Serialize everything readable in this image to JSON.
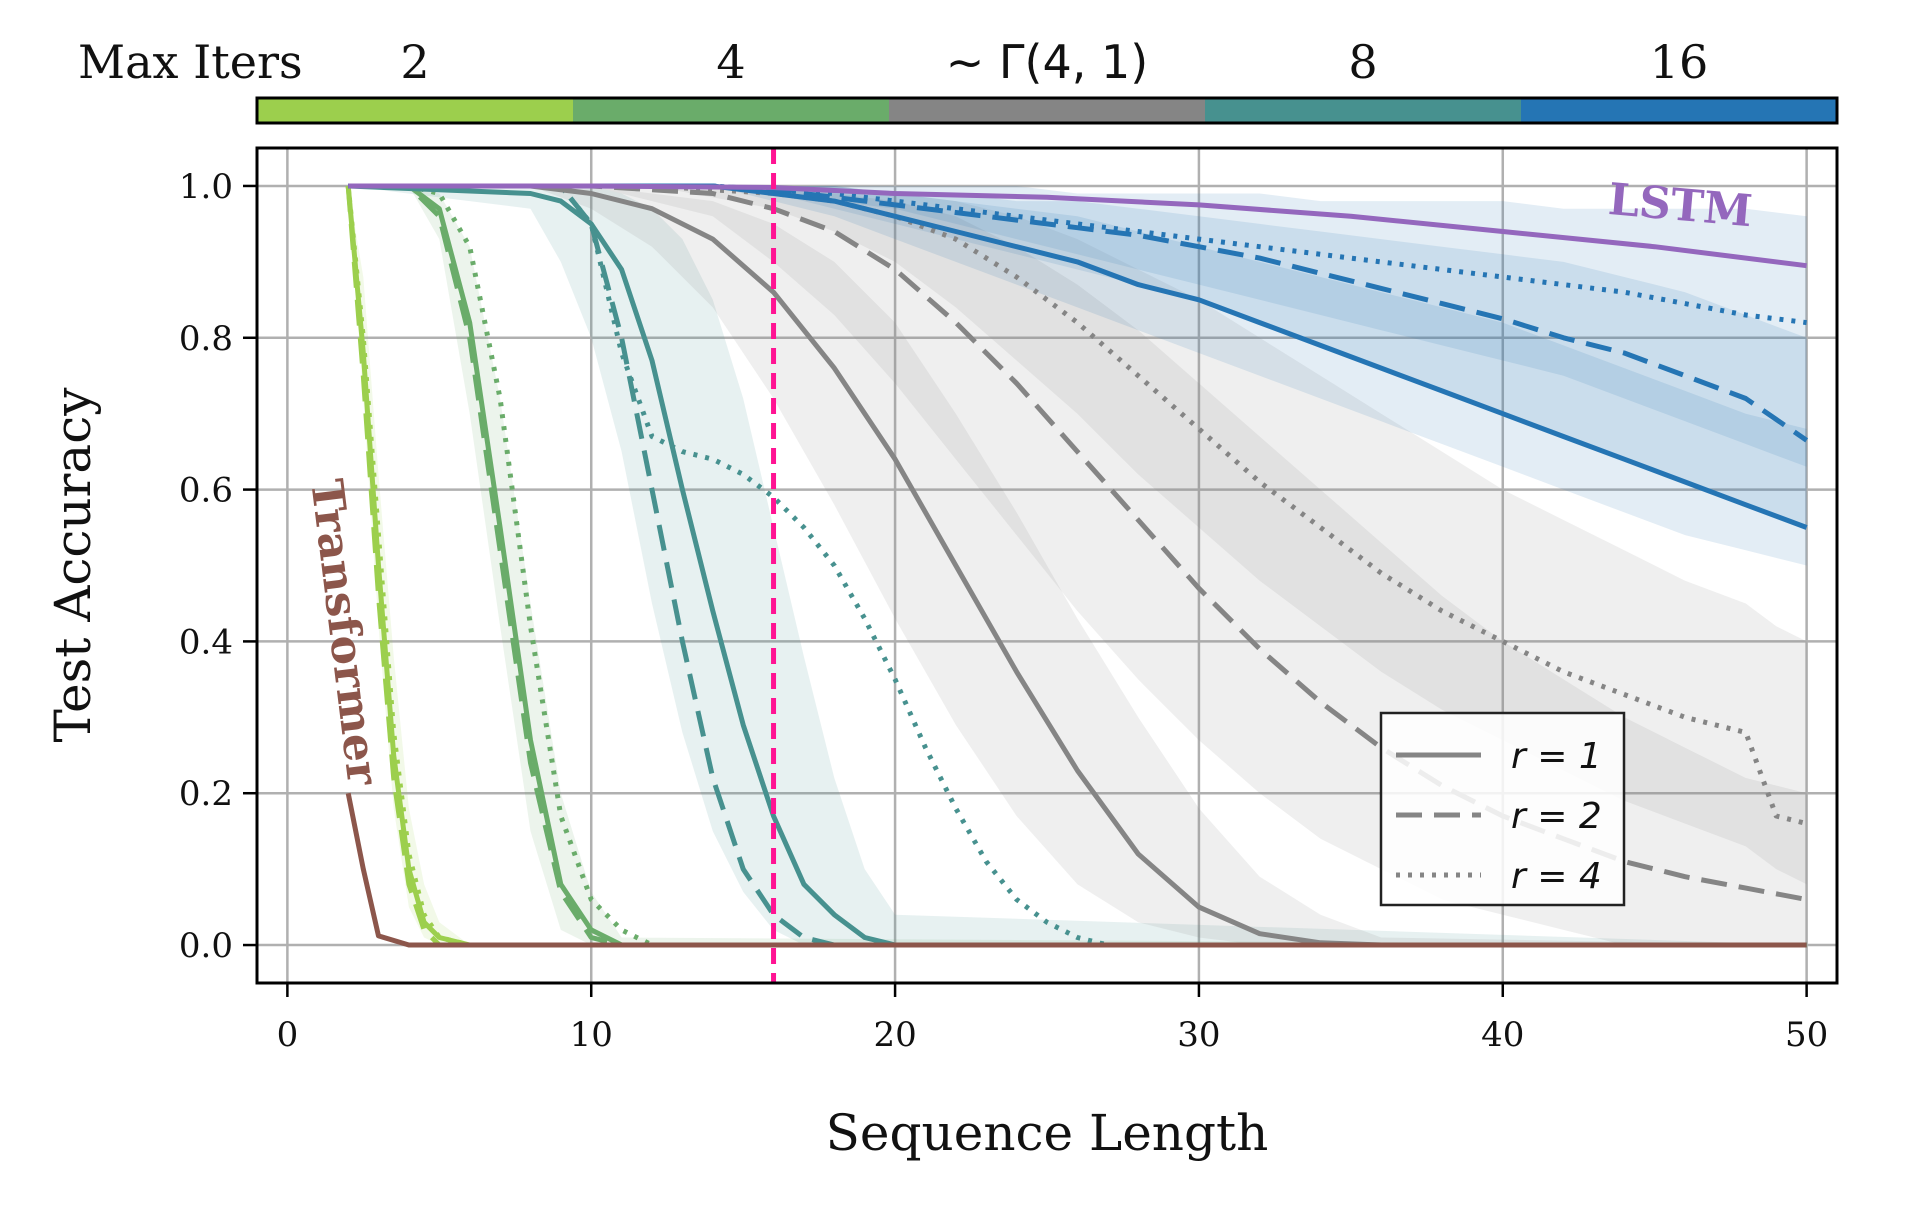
{
  "chart_data": {
    "type": "line",
    "xlabel": "Sequence Length",
    "ylabel": "Test Accuracy",
    "xlim": [
      -1,
      51
    ],
    "ylim": [
      -0.05,
      1.05
    ],
    "xticks": [
      0,
      10,
      20,
      30,
      40,
      50
    ],
    "yticks": [
      0.0,
      0.2,
      0.4,
      0.6,
      0.8,
      1.0
    ],
    "xtick_labels": [
      "0",
      "10",
      "20",
      "30",
      "40",
      "50"
    ],
    "ytick_labels": [
      "0.0",
      "0.2",
      "0.4",
      "0.6",
      "0.8",
      "1.0"
    ],
    "grid": true,
    "vline": {
      "x": 16,
      "color": "#ff1493",
      "style": "dashed"
    },
    "colorbar": {
      "title": "Max Iters",
      "segments": [
        {
          "label": "2",
          "color": "#9ccf4d"
        },
        {
          "label": "4",
          "color": "#6aac6a"
        },
        {
          "label": "~ Γ(4, 1)",
          "color": "#858585"
        },
        {
          "label": "8",
          "color": "#47918f"
        },
        {
          "label": "16",
          "color": "#2575b4"
        }
      ]
    },
    "annotations": [
      {
        "text": "LSTM",
        "color": "#9467bd",
        "x": 45.8,
        "y": 0.955,
        "rotation": 5
      },
      {
        "text": "Transformer",
        "color": "#8c564b",
        "x": 1.4,
        "y": 0.41,
        "rotation": 83
      }
    ],
    "legend": {
      "position": "lower-right",
      "entries": [
        {
          "label": "r = 1",
          "style": "solid"
        },
        {
          "label": "r = 2",
          "style": "dashed"
        },
        {
          "label": "r = 4",
          "style": "dotted"
        }
      ]
    },
    "series": [
      {
        "group": "2",
        "r": 1,
        "color": "#9ccf4d",
        "style": "solid",
        "x": [
          2,
          2.5,
          3,
          3.5,
          4,
          4.5,
          5,
          6,
          50
        ],
        "y": [
          1.0,
          0.78,
          0.5,
          0.25,
          0.1,
          0.03,
          0.01,
          0.0,
          0.0
        ],
        "band_lo": [
          1.0,
          0.72,
          0.42,
          0.18,
          0.05,
          0.01,
          0.0,
          0.0,
          0.0
        ],
        "band_hi": [
          1.0,
          0.88,
          0.62,
          0.38,
          0.18,
          0.08,
          0.03,
          0.0,
          0.0
        ]
      },
      {
        "group": "2",
        "r": 2,
        "color": "#9ccf4d",
        "style": "dashed",
        "x": [
          2,
          2.5,
          3,
          3.5,
          4,
          4.5,
          5,
          6,
          50
        ],
        "y": [
          1.0,
          0.75,
          0.46,
          0.22,
          0.08,
          0.02,
          0.0,
          0.0,
          0.0
        ]
      },
      {
        "group": "2",
        "r": 4,
        "color": "#9ccf4d",
        "style": "dotted",
        "x": [
          2,
          2.5,
          3,
          3.5,
          4,
          4.5,
          5,
          6,
          50
        ],
        "y": [
          1.0,
          0.8,
          0.54,
          0.28,
          0.12,
          0.04,
          0.01,
          0.0,
          0.0
        ]
      },
      {
        "group": "4",
        "r": 1,
        "color": "#6aac6a",
        "style": "solid",
        "x": [
          2,
          4,
          5,
          6,
          7,
          8,
          9,
          10,
          11,
          50
        ],
        "y": [
          1.0,
          1.0,
          0.97,
          0.82,
          0.55,
          0.27,
          0.08,
          0.02,
          0.0,
          0.0
        ],
        "band_lo": [
          1.0,
          1.0,
          0.93,
          0.7,
          0.42,
          0.15,
          0.02,
          0.0,
          0.0,
          0.0
        ],
        "band_hi": [
          1.0,
          1.0,
          0.99,
          0.92,
          0.72,
          0.45,
          0.2,
          0.07,
          0.01,
          0.0
        ]
      },
      {
        "group": "4",
        "r": 2,
        "color": "#6aac6a",
        "style": "dashed",
        "x": [
          2,
          4,
          5,
          6,
          7,
          8,
          9,
          10,
          11,
          50
        ],
        "y": [
          1.0,
          1.0,
          0.96,
          0.8,
          0.52,
          0.24,
          0.07,
          0.01,
          0.0,
          0.0
        ]
      },
      {
        "group": "4",
        "r": 4,
        "color": "#6aac6a",
        "style": "dotted",
        "x": [
          2,
          4,
          5,
          6,
          7,
          8,
          9,
          10,
          11,
          12,
          50
        ],
        "y": [
          1.0,
          1.0,
          0.99,
          0.92,
          0.72,
          0.42,
          0.17,
          0.06,
          0.02,
          0.0,
          0.0
        ]
      },
      {
        "group": "8",
        "r": 1,
        "color": "#47918f",
        "style": "solid",
        "x": [
          2,
          8,
          9,
          10,
          11,
          12,
          13,
          14,
          15,
          16,
          17,
          18,
          19,
          20,
          50
        ],
        "y": [
          1.0,
          0.99,
          0.98,
          0.95,
          0.89,
          0.77,
          0.6,
          0.44,
          0.29,
          0.17,
          0.08,
          0.04,
          0.01,
          0.0,
          0.0
        ],
        "band_lo": [
          1.0,
          0.97,
          0.9,
          0.8,
          0.65,
          0.45,
          0.28,
          0.15,
          0.07,
          0.02,
          0.0,
          0.0,
          0.0,
          0.0,
          0.0
        ],
        "band_hi": [
          1.0,
          1.0,
          1.0,
          1.0,
          0.99,
          0.97,
          0.93,
          0.85,
          0.72,
          0.55,
          0.38,
          0.22,
          0.1,
          0.04,
          0.0
        ]
      },
      {
        "group": "8",
        "r": 2,
        "color": "#47918f",
        "style": "dashed",
        "x": [
          2,
          9,
          10,
          11,
          12,
          13,
          14,
          15,
          16,
          17,
          18,
          19,
          50
        ],
        "y": [
          1.0,
          1.0,
          0.95,
          0.8,
          0.6,
          0.4,
          0.22,
          0.1,
          0.04,
          0.01,
          0.0,
          0.0,
          0.0
        ]
      },
      {
        "group": "8",
        "r": 4,
        "color": "#47918f",
        "style": "dotted",
        "x": [
          2,
          9,
          10,
          11,
          12,
          13,
          14,
          15,
          16,
          17,
          18,
          19,
          20,
          21,
          22,
          23,
          24,
          25,
          26,
          27,
          28,
          50
        ],
        "y": [
          1.0,
          1.0,
          0.95,
          0.78,
          0.67,
          0.65,
          0.64,
          0.62,
          0.59,
          0.55,
          0.5,
          0.43,
          0.35,
          0.26,
          0.18,
          0.11,
          0.06,
          0.03,
          0.01,
          0.0,
          0.0,
          0.0
        ]
      },
      {
        "group": "~ Γ(4, 1)",
        "r": 1,
        "color": "#858585",
        "style": "solid",
        "x": [
          2,
          8,
          10,
          12,
          14,
          16,
          18,
          20,
          22,
          24,
          26,
          28,
          30,
          32,
          34,
          36,
          50
        ],
        "y": [
          1.0,
          1.0,
          0.99,
          0.97,
          0.93,
          0.86,
          0.76,
          0.64,
          0.5,
          0.36,
          0.23,
          0.12,
          0.05,
          0.015,
          0.003,
          0.0,
          0.0
        ],
        "band_lo": [
          1.0,
          1.0,
          0.97,
          0.92,
          0.84,
          0.72,
          0.58,
          0.43,
          0.29,
          0.17,
          0.08,
          0.03,
          0.01,
          0.0,
          0.0,
          0.0,
          0.0
        ],
        "band_hi": [
          1.0,
          1.0,
          1.0,
          0.99,
          0.98,
          0.95,
          0.9,
          0.82,
          0.7,
          0.57,
          0.43,
          0.3,
          0.18,
          0.09,
          0.04,
          0.01,
          0.0
        ]
      },
      {
        "group": "~ Γ(4, 1)",
        "r": 2,
        "color": "#858585",
        "style": "dashed",
        "x": [
          2,
          10,
          14,
          16,
          18,
          20,
          22,
          24,
          26,
          28,
          30,
          32,
          34,
          36,
          38,
          40,
          42,
          44,
          46,
          48,
          50
        ],
        "y": [
          1.0,
          1.0,
          0.99,
          0.97,
          0.94,
          0.89,
          0.82,
          0.74,
          0.65,
          0.56,
          0.47,
          0.39,
          0.32,
          0.26,
          0.21,
          0.17,
          0.14,
          0.11,
          0.09,
          0.075,
          0.06
        ],
        "band_lo": [
          1.0,
          1.0,
          0.96,
          0.9,
          0.83,
          0.74,
          0.64,
          0.54,
          0.44,
          0.35,
          0.27,
          0.2,
          0.14,
          0.1,
          0.06,
          0.04,
          0.02,
          0.0,
          0.0,
          0.0,
          0.0
        ],
        "band_hi": [
          1.0,
          1.0,
          1.0,
          1.0,
          0.99,
          0.98,
          0.96,
          0.92,
          0.87,
          0.81,
          0.74,
          0.67,
          0.6,
          0.53,
          0.46,
          0.4,
          0.35,
          0.3,
          0.26,
          0.22,
          0.2
        ]
      },
      {
        "group": "~ Γ(4, 1)",
        "r": 4,
        "color": "#858585",
        "style": "dotted",
        "x": [
          2,
          12,
          16,
          18,
          20,
          22,
          24,
          26,
          28,
          30,
          32,
          34,
          36,
          38,
          40,
          42,
          44,
          46,
          48,
          49,
          50
        ],
        "y": [
          1.0,
          1.0,
          0.99,
          0.98,
          0.96,
          0.93,
          0.88,
          0.82,
          0.75,
          0.68,
          0.61,
          0.55,
          0.49,
          0.44,
          0.4,
          0.36,
          0.33,
          0.3,
          0.28,
          0.17,
          0.16
        ],
        "band_lo": [
          1.0,
          1.0,
          0.97,
          0.94,
          0.9,
          0.84,
          0.77,
          0.7,
          0.62,
          0.55,
          0.48,
          0.42,
          0.36,
          0.31,
          0.27,
          0.23,
          0.19,
          0.16,
          0.13,
          0.1,
          0.08
        ],
        "band_hi": [
          1.0,
          1.0,
          1.0,
          1.0,
          0.99,
          0.98,
          0.96,
          0.93,
          0.89,
          0.85,
          0.8,
          0.75,
          0.7,
          0.65,
          0.6,
          0.56,
          0.52,
          0.48,
          0.45,
          0.42,
          0.4
        ]
      },
      {
        "group": "16",
        "r": 1,
        "color": "#2575b4",
        "style": "solid",
        "x": [
          2,
          14,
          16,
          18,
          20,
          22,
          24,
          26,
          28,
          30,
          32,
          34,
          36,
          38,
          40,
          42,
          44,
          46,
          48,
          50
        ],
        "y": [
          1.0,
          1.0,
          0.99,
          0.98,
          0.96,
          0.94,
          0.92,
          0.9,
          0.87,
          0.85,
          0.82,
          0.79,
          0.76,
          0.73,
          0.7,
          0.67,
          0.64,
          0.61,
          0.58,
          0.55
        ],
        "band_lo": [
          1.0,
          1.0,
          0.98,
          0.96,
          0.93,
          0.9,
          0.87,
          0.84,
          0.81,
          0.78,
          0.75,
          0.72,
          0.69,
          0.66,
          0.63,
          0.6,
          0.57,
          0.54,
          0.52,
          0.5
        ],
        "band_hi": [
          1.0,
          1.0,
          1.0,
          1.0,
          0.99,
          0.98,
          0.97,
          0.96,
          0.94,
          0.92,
          0.9,
          0.88,
          0.86,
          0.84,
          0.82,
          0.79,
          0.76,
          0.73,
          0.7,
          0.68
        ]
      },
      {
        "group": "16",
        "r": 2,
        "color": "#2575b4",
        "style": "dashed",
        "x": [
          2,
          14,
          16,
          18,
          20,
          22,
          24,
          26,
          28,
          30,
          32,
          34,
          36,
          38,
          40,
          42,
          44,
          46,
          48,
          50
        ],
        "y": [
          1.0,
          1.0,
          0.995,
          0.985,
          0.975,
          0.965,
          0.955,
          0.945,
          0.935,
          0.92,
          0.905,
          0.885,
          0.865,
          0.845,
          0.825,
          0.8,
          0.78,
          0.75,
          0.72,
          0.665
        ],
        "band_lo": [
          1.0,
          1.0,
          0.99,
          0.97,
          0.95,
          0.93,
          0.91,
          0.89,
          0.87,
          0.85,
          0.82,
          0.79,
          0.76,
          0.73,
          0.7,
          0.67,
          0.64,
          0.61,
          0.58,
          0.55
        ],
        "band_hi": [
          1.0,
          1.0,
          1.0,
          1.0,
          0.99,
          0.99,
          0.98,
          0.98,
          0.97,
          0.96,
          0.95,
          0.94,
          0.93,
          0.92,
          0.91,
          0.9,
          0.88,
          0.86,
          0.83,
          0.8
        ]
      },
      {
        "group": "16",
        "r": 4,
        "color": "#2575b4",
        "style": "dotted",
        "x": [
          2,
          14,
          16,
          18,
          20,
          22,
          24,
          26,
          28,
          30,
          32,
          34,
          36,
          38,
          40,
          42,
          44,
          46,
          48,
          50
        ],
        "y": [
          1.0,
          1.0,
          0.995,
          0.99,
          0.98,
          0.97,
          0.96,
          0.95,
          0.94,
          0.93,
          0.92,
          0.91,
          0.9,
          0.89,
          0.88,
          0.87,
          0.86,
          0.845,
          0.83,
          0.82
        ],
        "band_lo": [
          1.0,
          1.0,
          0.99,
          0.98,
          0.97,
          0.95,
          0.93,
          0.91,
          0.89,
          0.87,
          0.85,
          0.83,
          0.81,
          0.79,
          0.77,
          0.75,
          0.72,
          0.69,
          0.66,
          0.63
        ],
        "band_hi": [
          1.0,
          1.0,
          1.0,
          1.0,
          1.0,
          1.0,
          1.0,
          0.99,
          0.99,
          0.99,
          0.99,
          0.98,
          0.98,
          0.98,
          0.98,
          0.97,
          0.97,
          0.97,
          0.97,
          0.96
        ]
      },
      {
        "group": "LSTM",
        "r": 1,
        "color": "#9467bd",
        "style": "solid",
        "x": [
          2,
          10,
          16,
          20,
          25,
          30,
          35,
          40,
          45,
          50
        ],
        "y": [
          1.0,
          1.0,
          0.998,
          0.99,
          0.985,
          0.975,
          0.96,
          0.94,
          0.92,
          0.895
        ]
      },
      {
        "group": "Transformer",
        "r": 1,
        "color": "#8c564b",
        "style": "solid",
        "x": [
          2,
          2.5,
          3,
          4,
          50
        ],
        "y": [
          0.2,
          0.1,
          0.012,
          0.0,
          0.0
        ]
      }
    ]
  }
}
